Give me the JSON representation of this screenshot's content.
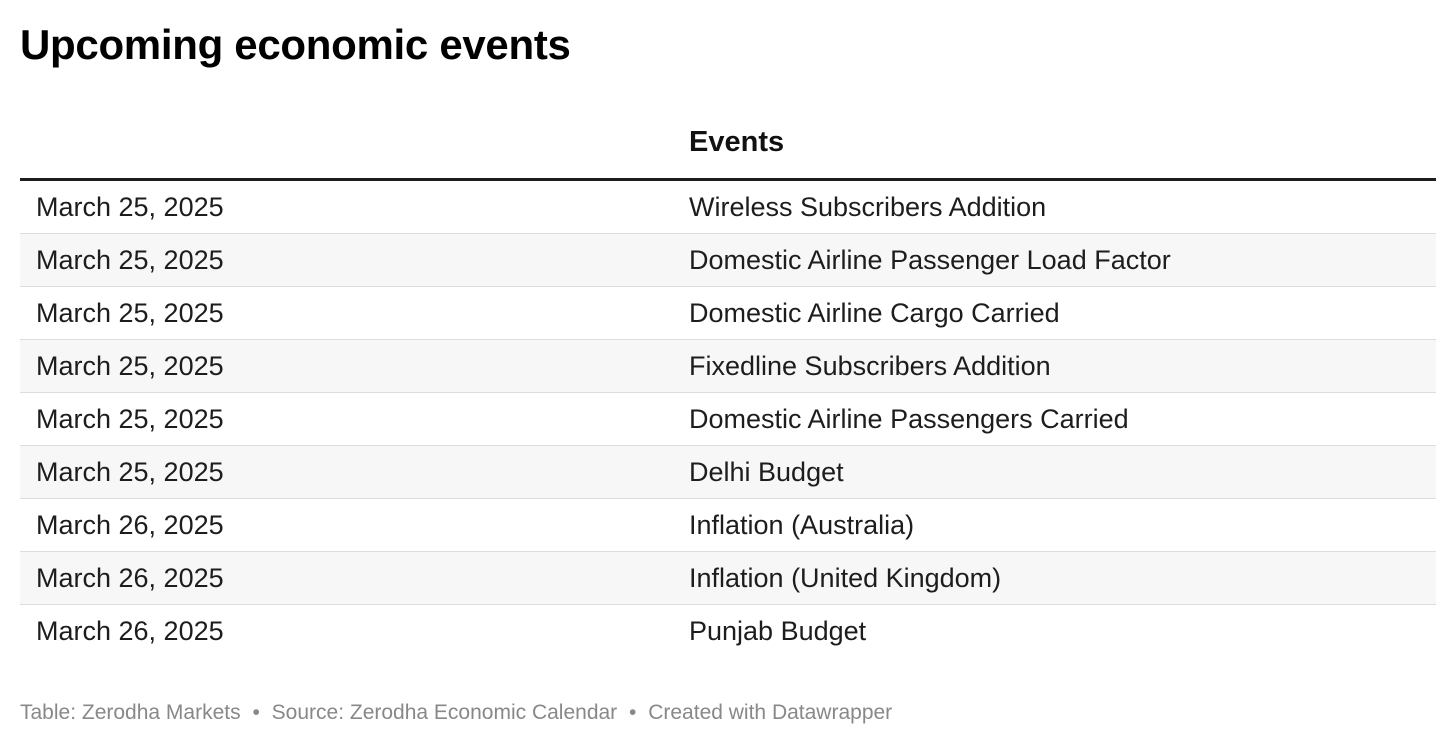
{
  "chart_data": {
    "type": "table",
    "title": "Upcoming economic events",
    "columns": [
      "",
      "Events"
    ],
    "rows": [
      {
        "date": "March 25, 2025",
        "event": "Wireless Subscribers Addition"
      },
      {
        "date": "March 25, 2025",
        "event": "Domestic Airline Passenger Load Factor"
      },
      {
        "date": "March 25, 2025",
        "event": "Domestic Airline Cargo Carried"
      },
      {
        "date": "March 25, 2025",
        "event": "Fixedline Subscribers Addition"
      },
      {
        "date": "March 25, 2025",
        "event": "Domestic Airline Passengers Carried"
      },
      {
        "date": "March 25, 2025",
        "event": "Delhi Budget"
      },
      {
        "date": "March 26, 2025",
        "event": "Inflation (Australia)"
      },
      {
        "date": "March 26, 2025",
        "event": "Inflation (United Kingdom)"
      },
      {
        "date": "March 26, 2025",
        "event": "Punjab Budget"
      }
    ]
  },
  "footer": {
    "table_credit": "Table: Zerodha Markets",
    "source": "Source: Zerodha Economic Calendar",
    "created_with": "Created with Datawrapper",
    "separator": "•"
  },
  "colors": {
    "text": "#1d1d1d",
    "title": "#000000",
    "row_alt_background": "#f7f7f7",
    "row_border": "#dddddd",
    "header_border": "#1d1d1d",
    "footer_text": "#888888"
  }
}
